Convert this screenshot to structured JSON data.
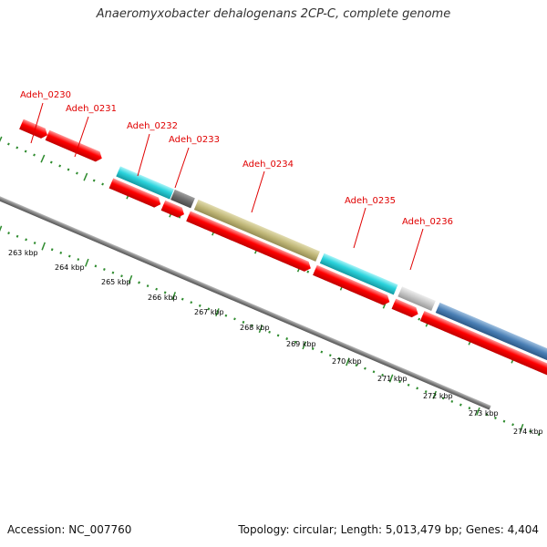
{
  "title": "Anaeromyxobacter dehalogenans 2CP-C, complete genome",
  "accession": "Accession: NC_007760",
  "summary": "Topology: circular; Length: 5,013,479 bp; Genes: 4,404",
  "scale_labels": [
    "263 kbp",
    "264 kbp",
    "265 kbp",
    "266 kbp",
    "267 kbp",
    "268 kbp",
    "269 kbp",
    "270 kbp",
    "271 kbp",
    "272 kbp",
    "273 kbp",
    "274 kbp"
  ],
  "gene_labels": [
    "Adeh_0230",
    "Adeh_0231",
    "Adeh_0232",
    "Adeh_0233",
    "Adeh_0234",
    "Adeh_0235",
    "Adeh_0236"
  ],
  "colors": {
    "cds": "#ff0000",
    "backbone": "#808080",
    "ticks": "#2e8b2e",
    "label": "#e00000",
    "cyan": "#2bd3dc",
    "dark_gray": "#6c6c6c",
    "olive": "#c0b778",
    "light_gray": "#c6c6c6",
    "steel_blue": "#4a7fb5"
  }
}
